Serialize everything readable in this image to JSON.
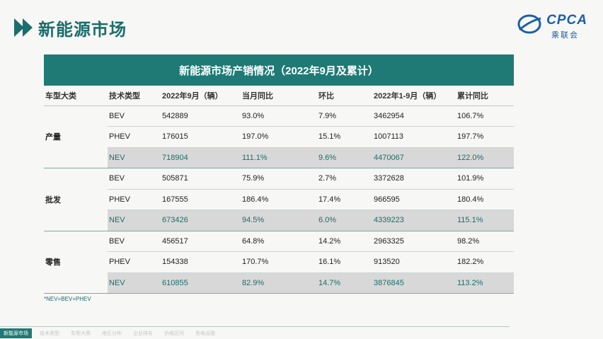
{
  "page_title": "新能源市场",
  "logo": {
    "text": "CPCA",
    "sub": "乘联会",
    "mark": "CCAR"
  },
  "table": {
    "title": "新能源市场产销情况（2022年9月及累计）",
    "headers": [
      "车型大类",
      "技术类型",
      "2022年9月（辆）",
      "当月同比",
      "环比",
      "2022年1-9月（辆）",
      "累计同比"
    ],
    "groups": [
      {
        "category": "产量",
        "rows": [
          [
            "BEV",
            "542889",
            "93.0%",
            "7.9%",
            "3462954",
            "106.7%"
          ],
          [
            "PHEV",
            "176015",
            "197.0%",
            "15.1%",
            "1007113",
            "197.7%"
          ],
          [
            "NEV",
            "718904",
            "111.1%",
            "9.6%",
            "4470067",
            "122.0%"
          ]
        ]
      },
      {
        "category": "批发",
        "rows": [
          [
            "BEV",
            "505871",
            "75.9%",
            "2.7%",
            "3372628",
            "101.9%"
          ],
          [
            "PHEV",
            "167555",
            "186.4%",
            "17.4%",
            "966595",
            "180.4%"
          ],
          [
            "NEV",
            "673426",
            "94.5%",
            "6.0%",
            "4339223",
            "115.1%"
          ]
        ]
      },
      {
        "category": "零售",
        "rows": [
          [
            "BEV",
            "456517",
            "64.8%",
            "14.2%",
            "2963325",
            "98.2%"
          ],
          [
            "PHEV",
            "154338",
            "170.7%",
            "16.1%",
            "913520",
            "182.2%"
          ],
          [
            "NEV",
            "610855",
            "82.9%",
            "14.7%",
            "3876845",
            "113.2%"
          ]
        ]
      }
    ]
  },
  "footnote": "*NEV=BEV+PHEV",
  "nav": {
    "items": [
      "新能源市场",
      "技术类型",
      "车型大类",
      "地区分布",
      "企业排名",
      "价格区间",
      "充电设施"
    ]
  },
  "colors": {
    "accent": "#1f7a75",
    "nev_text": "#1a6e6b",
    "nev_bg": "#d8d8d8",
    "logo": "#1b5fa8"
  }
}
